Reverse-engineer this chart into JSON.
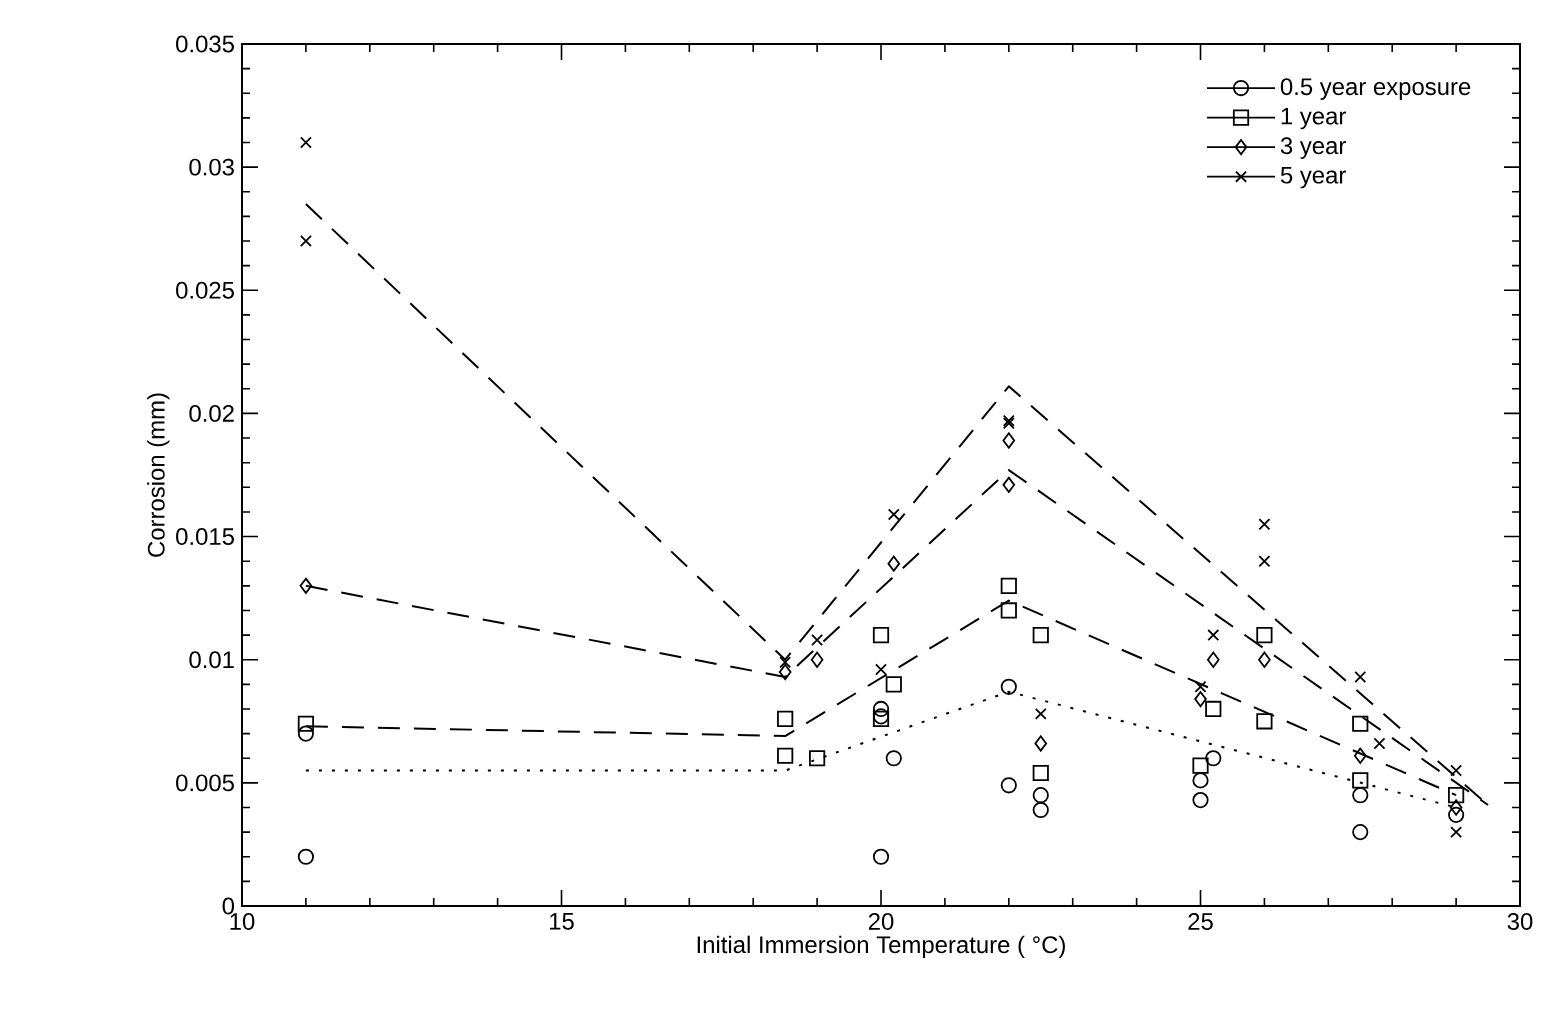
{
  "chart_data": {
    "type": "scatter",
    "xlabel": "Initial Immersion Temperature ( °C)",
    "ylabel": "Corrosion (mm)",
    "xlim": [
      10,
      30
    ],
    "xticks": [
      10,
      15,
      20,
      25,
      30
    ],
    "ylim": [
      0,
      0.035
    ],
    "yticks": [
      0,
      0.005,
      0.01,
      0.015,
      0.02,
      0.025,
      0.03,
      0.035
    ],
    "grid": false,
    "legend": "top right",
    "series": [
      {
        "name": "0.5 year exposure",
        "marker": "circle",
        "color": "#000000",
        "x": [
          11,
          11,
          20,
          20,
          20,
          20.2,
          22,
          22,
          22.5,
          22.5,
          25,
          25,
          25.2,
          27.5,
          27.5,
          29
        ],
        "values": [
          0.002,
          0.007,
          0.002,
          0.008,
          0.0077,
          0.006,
          0.0089,
          0.0049,
          0.0039,
          0.0045,
          0.0043,
          0.0051,
          0.006,
          0.003,
          0.0045,
          0.0037
        ]
      },
      {
        "name": "1  year",
        "marker": "square",
        "color": "#000000",
        "x": [
          11,
          18.5,
          18.5,
          19,
          20,
          20.2,
          20,
          22,
          22,
          22.5,
          22.5,
          25,
          25.2,
          26,
          26,
          27.5,
          27.5,
          29
        ],
        "values": [
          0.0074,
          0.0076,
          0.0061,
          0.006,
          0.011,
          0.009,
          0.0076,
          0.013,
          0.012,
          0.011,
          0.0054,
          0.0057,
          0.008,
          0.011,
          0.0075,
          0.0074,
          0.0051,
          0.0045
        ]
      },
      {
        "name": "3  year",
        "marker": "diamond",
        "color": "#000000",
        "x": [
          11,
          18.5,
          19,
          20.2,
          22,
          22,
          22.5,
          25.2,
          25,
          26,
          27.5,
          29
        ],
        "values": [
          0.013,
          0.0095,
          0.01,
          0.0139,
          0.0189,
          0.0171,
          0.0066,
          0.01,
          0.0084,
          0.01,
          0.0061,
          0.004
        ]
      },
      {
        "name": "5  year",
        "marker": "cross",
        "color": "#000000",
        "x": [
          11,
          11,
          18.5,
          19,
          20.2,
          20,
          22,
          22,
          22.5,
          25.2,
          25,
          26,
          26,
          27.5,
          27.8,
          29,
          29
        ],
        "values": [
          0.031,
          0.027,
          0.0099,
          0.0108,
          0.0159,
          0.0096,
          0.0197,
          0.0196,
          0.0078,
          0.011,
          0.0089,
          0.0155,
          0.014,
          0.0093,
          0.0066,
          0.0055,
          0.003
        ]
      },
      {
        "type": "line",
        "line_style": "dotted",
        "marker": "none",
        "color": "#000000",
        "x": [
          11,
          18.5,
          22,
          29
        ],
        "values": [
          0.0055,
          0.0055,
          0.0087,
          0.004
        ]
      },
      {
        "type": "line",
        "line_style": "dashed",
        "marker": "none",
        "color": "#000000",
        "x": [
          11,
          18.5,
          22,
          29
        ],
        "values": [
          0.0073,
          0.0069,
          0.0124,
          0.0045
        ]
      },
      {
        "type": "line",
        "line_style": "dashed",
        "marker": "none",
        "color": "#000000",
        "x": [
          11,
          18.5,
          22,
          29.5
        ],
        "values": [
          0.013,
          0.0093,
          0.0177,
          0.0041
        ]
      },
      {
        "type": "line",
        "line_style": "dashed",
        "marker": "none",
        "color": "#000000",
        "x": [
          11,
          18.5,
          22,
          29.5
        ],
        "values": [
          0.0285,
          0.01,
          0.0211,
          0.0041
        ]
      }
    ]
  }
}
